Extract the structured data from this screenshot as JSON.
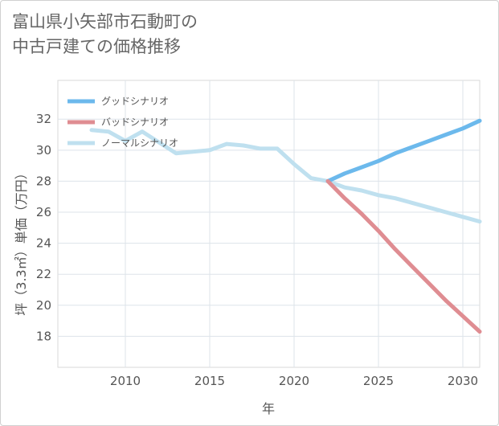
{
  "title_lines": [
    "富山県小矢部市石動町の",
    "中古戸建ての価格推移"
  ],
  "chart_data": {
    "type": "line",
    "title": "富山県小矢部市石動町の中古戸建ての価格推移",
    "xlabel": "年",
    "ylabel": "坪（3.3㎡）単価（万円）",
    "xlim": [
      2006,
      2031
    ],
    "ylim": [
      16,
      34.5
    ],
    "xticks": [
      2010,
      2015,
      2020,
      2025,
      2030
    ],
    "yticks": [
      18,
      20,
      22,
      24,
      26,
      28,
      30,
      32
    ],
    "grid": true,
    "legend_position": "top-left",
    "series": [
      {
        "name": "グッドシナリオ",
        "color": "#6cb9ec",
        "x": [
          2022,
          2023,
          2024,
          2025,
          2026,
          2027,
          2028,
          2029,
          2030,
          2031
        ],
        "y": [
          28.0,
          28.5,
          28.9,
          29.3,
          29.8,
          30.2,
          30.6,
          31.0,
          31.4,
          31.9
        ]
      },
      {
        "name": "バッドシナリオ",
        "color": "#df8d92",
        "x": [
          2022,
          2023,
          2024,
          2025,
          2026,
          2027,
          2028,
          2029,
          2030,
          2031
        ],
        "y": [
          28.0,
          26.9,
          25.9,
          24.8,
          23.6,
          22.5,
          21.4,
          20.3,
          19.3,
          18.3
        ]
      },
      {
        "name": "ノーマルシナリオ",
        "color": "#bfe0ef",
        "x": [
          2008,
          2009,
          2010,
          2011,
          2012,
          2013,
          2014,
          2015,
          2016,
          2017,
          2018,
          2019,
          2020,
          2021,
          2022,
          2023,
          2024,
          2025,
          2026,
          2027,
          2028,
          2029,
          2030,
          2031
        ],
        "y": [
          31.3,
          31.2,
          30.6,
          31.2,
          30.5,
          29.8,
          29.9,
          30.0,
          30.4,
          30.3,
          30.1,
          30.1,
          29.1,
          28.2,
          28.0,
          27.6,
          27.4,
          27.1,
          26.9,
          26.6,
          26.3,
          26.0,
          25.7,
          25.4
        ]
      }
    ]
  }
}
